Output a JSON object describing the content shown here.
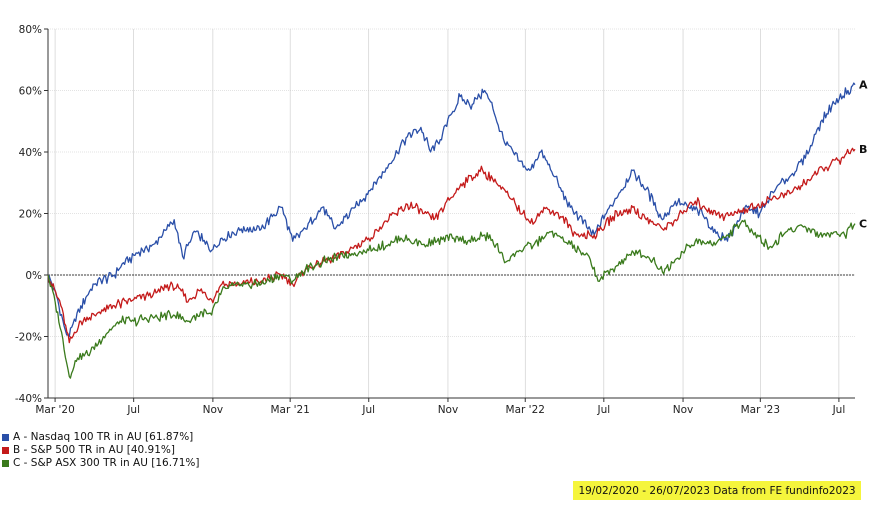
{
  "chart_data": {
    "type": "line",
    "x_tick_labels": [
      "Mar '20",
      "Jul",
      "Nov",
      "Mar '21",
      "Jul",
      "Nov",
      "Mar '22",
      "Jul",
      "Nov",
      "Mar '23",
      "Jul"
    ],
    "x_tick_dates": [
      "2020-03-01",
      "2020-07-01",
      "2020-11-01",
      "2021-03-01",
      "2021-07-01",
      "2021-11-01",
      "2022-03-01",
      "2022-07-01",
      "2022-11-01",
      "2023-03-01",
      "2023-07-01"
    ],
    "xlim": [
      "2020-02-19",
      "2023-07-26"
    ],
    "ylim": [
      -40,
      80
    ],
    "y_tick_values": [
      -40,
      -20,
      0,
      20,
      40,
      60,
      80
    ],
    "y_tick_labels": [
      "-40%",
      "-20%",
      "0%",
      "20%",
      "40%",
      "60%",
      "80%"
    ],
    "grid": true,
    "zero_line": true,
    "series": [
      {
        "name": "A - Nasdaq 100 TR in AU [61.87%]",
        "end_label": "A",
        "color": "#2a4fa8",
        "points": [
          [
            "2020-02-19",
            0
          ],
          [
            "2020-03-05",
            -8
          ],
          [
            "2020-03-17",
            -18
          ],
          [
            "2020-03-23",
            -20
          ],
          [
            "2020-04-10",
            -10
          ],
          [
            "2020-05-01",
            -3
          ],
          [
            "2020-06-01",
            0
          ],
          [
            "2020-06-15",
            4
          ],
          [
            "2020-07-15",
            8
          ],
          [
            "2020-08-01",
            10
          ],
          [
            "2020-08-15",
            13
          ],
          [
            "2020-09-02",
            18
          ],
          [
            "2020-09-15",
            6
          ],
          [
            "2020-10-05",
            14
          ],
          [
            "2020-10-30",
            8
          ],
          [
            "2020-11-15",
            12
          ],
          [
            "2020-12-15",
            15
          ],
          [
            "2021-01-15",
            15
          ],
          [
            "2021-02-15",
            22
          ],
          [
            "2021-03-05",
            11
          ],
          [
            "2021-03-25",
            15
          ],
          [
            "2021-04-20",
            22
          ],
          [
            "2021-05-10",
            15
          ],
          [
            "2021-06-10",
            22
          ],
          [
            "2021-07-05",
            28
          ],
          [
            "2021-08-01",
            36
          ],
          [
            "2021-08-30",
            45
          ],
          [
            "2021-09-20",
            48
          ],
          [
            "2021-10-05",
            40
          ],
          [
            "2021-10-20",
            44
          ],
          [
            "2021-11-05",
            52
          ],
          [
            "2021-11-20",
            58
          ],
          [
            "2021-12-05",
            55
          ],
          [
            "2021-12-28",
            60
          ],
          [
            "2022-01-10",
            54
          ],
          [
            "2022-01-28",
            43
          ],
          [
            "2022-02-20",
            37
          ],
          [
            "2022-03-08",
            34
          ],
          [
            "2022-03-25",
            40
          ],
          [
            "2022-04-15",
            32
          ],
          [
            "2022-05-10",
            22
          ],
          [
            "2022-06-16",
            13
          ],
          [
            "2022-07-05",
            20
          ],
          [
            "2022-08-15",
            34
          ],
          [
            "2022-09-05",
            28
          ],
          [
            "2022-09-30",
            18
          ],
          [
            "2022-10-20",
            24
          ],
          [
            "2022-11-10",
            22
          ],
          [
            "2022-12-01",
            20
          ],
          [
            "2022-12-28",
            12
          ],
          [
            "2023-01-15",
            13
          ],
          [
            "2023-02-05",
            22
          ],
          [
            "2023-02-28",
            20
          ],
          [
            "2023-03-25",
            28
          ],
          [
            "2023-04-20",
            33
          ],
          [
            "2023-05-10",
            38
          ],
          [
            "2023-05-30",
            48
          ],
          [
            "2023-06-20",
            55
          ],
          [
            "2023-07-15",
            60
          ],
          [
            "2023-07-26",
            61.87
          ]
        ]
      },
      {
        "name": "B - S&P 500 TR in AU [40.91%]",
        "end_label": "B",
        "color": "#c41a1a",
        "points": [
          [
            "2020-02-19",
            0
          ],
          [
            "2020-03-10",
            -10
          ],
          [
            "2020-03-23",
            -22
          ],
          [
            "2020-04-10",
            -15
          ],
          [
            "2020-05-01",
            -13
          ],
          [
            "2020-06-01",
            -10
          ],
          [
            "2020-07-01",
            -8
          ],
          [
            "2020-08-01",
            -6
          ],
          [
            "2020-08-30",
            -3
          ],
          [
            "2020-09-25",
            -8
          ],
          [
            "2020-10-10",
            -5
          ],
          [
            "2020-10-30",
            -8
          ],
          [
            "2020-11-15",
            -3
          ],
          [
            "2020-12-15",
            -3
          ],
          [
            "2021-01-15",
            -2
          ],
          [
            "2021-02-15",
            0
          ],
          [
            "2021-03-05",
            -3
          ],
          [
            "2021-03-25",
            2
          ],
          [
            "2021-05-01",
            5
          ],
          [
            "2021-06-01",
            8
          ],
          [
            "2021-07-01",
            12
          ],
          [
            "2021-08-01",
            18
          ],
          [
            "2021-08-30",
            23
          ],
          [
            "2021-09-25",
            20
          ],
          [
            "2021-10-10",
            18
          ],
          [
            "2021-11-05",
            25
          ],
          [
            "2021-11-25",
            30
          ],
          [
            "2021-12-25",
            34
          ],
          [
            "2022-01-15",
            30
          ],
          [
            "2022-02-05",
            25
          ],
          [
            "2022-02-25",
            20
          ],
          [
            "2022-03-15",
            17
          ],
          [
            "2022-03-30",
            22
          ],
          [
            "2022-04-25",
            19
          ],
          [
            "2022-05-20",
            13
          ],
          [
            "2022-06-16",
            13
          ],
          [
            "2022-07-15",
            19
          ],
          [
            "2022-08-15",
            22
          ],
          [
            "2022-09-05",
            18
          ],
          [
            "2022-09-30",
            15
          ],
          [
            "2022-10-20",
            18
          ],
          [
            "2022-11-20",
            24
          ],
          [
            "2022-12-15",
            21
          ],
          [
            "2023-01-05",
            19
          ],
          [
            "2023-01-30",
            21
          ],
          [
            "2023-02-20",
            22
          ],
          [
            "2023-03-20",
            25
          ],
          [
            "2023-04-20",
            27
          ],
          [
            "2023-05-15",
            31
          ],
          [
            "2023-06-10",
            35
          ],
          [
            "2023-07-05",
            38
          ],
          [
            "2023-07-26",
            40.91
          ]
        ]
      },
      {
        "name": "C - S&P ASX 300 TR in AU [16.71%]",
        "end_label": "C",
        "color": "#3a7a1c",
        "points": [
          [
            "2020-02-19",
            0
          ],
          [
            "2020-03-05",
            -12
          ],
          [
            "2020-03-23",
            -33
          ],
          [
            "2020-04-05",
            -27
          ],
          [
            "2020-04-25",
            -25
          ],
          [
            "2020-05-15",
            -20
          ],
          [
            "2020-06-10",
            -15
          ],
          [
            "2020-07-01",
            -15
          ],
          [
            "2020-08-01",
            -14
          ],
          [
            "2020-09-01",
            -13
          ],
          [
            "2020-09-25",
            -15
          ],
          [
            "2020-10-15",
            -12
          ],
          [
            "2020-10-30",
            -13
          ],
          [
            "2020-11-15",
            -5
          ],
          [
            "2020-12-15",
            -3
          ],
          [
            "2021-01-15",
            -3
          ],
          [
            "2021-02-15",
            0
          ],
          [
            "2021-03-05",
            -2
          ],
          [
            "2021-03-25",
            2
          ],
          [
            "2021-05-01",
            5
          ],
          [
            "2021-06-01",
            7
          ],
          [
            "2021-07-01",
            8
          ],
          [
            "2021-08-01",
            10
          ],
          [
            "2021-08-20",
            12
          ],
          [
            "2021-09-25",
            10
          ],
          [
            "2021-10-15",
            11
          ],
          [
            "2021-11-10",
            12
          ],
          [
            "2021-12-10",
            11
          ],
          [
            "2021-12-28",
            13
          ],
          [
            "2022-01-15",
            10
          ],
          [
            "2022-01-28",
            4
          ],
          [
            "2022-02-20",
            8
          ],
          [
            "2022-03-15",
            10
          ],
          [
            "2022-04-10",
            14
          ],
          [
            "2022-05-10",
            10
          ],
          [
            "2022-06-10",
            5
          ],
          [
            "2022-06-22",
            -2
          ],
          [
            "2022-07-15",
            2
          ],
          [
            "2022-08-20",
            8
          ],
          [
            "2022-09-15",
            5
          ],
          [
            "2022-09-30",
            1
          ],
          [
            "2022-10-20",
            5
          ],
          [
            "2022-11-20",
            11
          ],
          [
            "2022-12-15",
            10
          ],
          [
            "2023-01-10",
            13
          ],
          [
            "2023-01-30",
            17
          ],
          [
            "2023-02-15",
            15
          ],
          [
            "2023-03-15",
            9
          ],
          [
            "2023-04-10",
            14
          ],
          [
            "2023-05-05",
            16
          ],
          [
            "2023-06-01",
            13
          ],
          [
            "2023-06-25",
            14
          ],
          [
            "2023-07-10",
            13
          ],
          [
            "2023-07-26",
            16.71
          ]
        ]
      }
    ]
  },
  "footer": {
    "text": "19/02/2020 - 26/07/2023 Data from FE fundinfo2023",
    "background": "#f5f53c"
  }
}
